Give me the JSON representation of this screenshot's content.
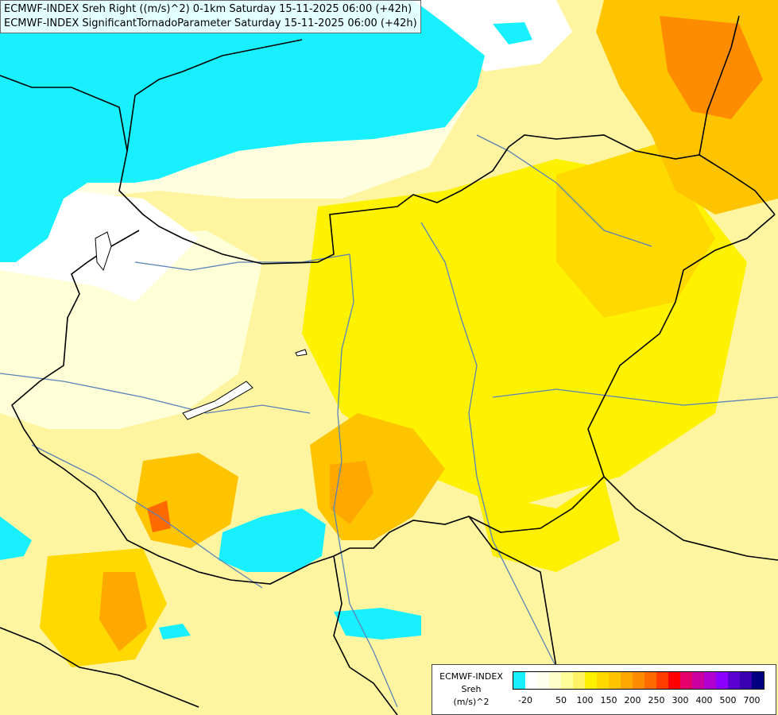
{
  "titles": {
    "line1": "ECMWF-INDEX Sreh Right ((m/s)^2) 0-1km Saturday 15-11-2025 06:00 (+42h)",
    "line2": "ECMWF-INDEX SignificantTornadoParameter Saturday 15-11-2025 06:00 (+42h)"
  },
  "legend": {
    "source": "ECMWF-INDEX",
    "parameter": "Sreh",
    "unit": "(m/s)^2",
    "colors": [
      "#19f0ff",
      "#ffffff",
      "#ffffee",
      "#ffffcc",
      "#ffff99",
      "#fff266",
      "#fff000",
      "#ffd900",
      "#ffc400",
      "#ffa800",
      "#ff8c00",
      "#ff6a00",
      "#ff3c00",
      "#ff0000",
      "#e6006e",
      "#cc00a0",
      "#b000d0",
      "#8c00ff",
      "#5a00d0",
      "#3a00b0",
      "#000080"
    ],
    "ticks": [
      {
        "label": "-20",
        "index": 0
      },
      {
        "label": "50",
        "index": 3
      },
      {
        "label": "100",
        "index": 5
      },
      {
        "label": "150",
        "index": 7
      },
      {
        "label": "200",
        "index": 9
      },
      {
        "label": "250",
        "index": 11
      },
      {
        "label": "300",
        "index": 13
      },
      {
        "label": "400",
        "index": 15
      },
      {
        "label": "500",
        "index": 17
      },
      {
        "label": "700",
        "index": 19
      }
    ]
  }
}
